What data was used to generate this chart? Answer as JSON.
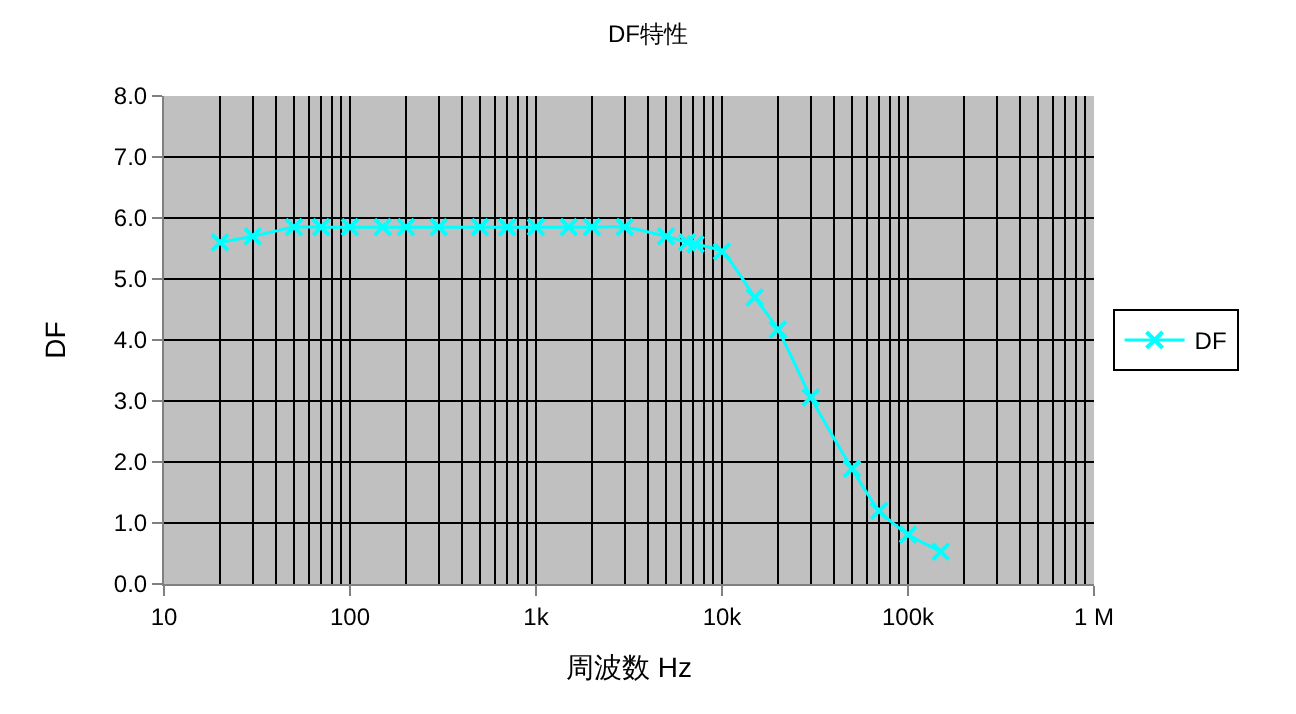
{
  "chart_data": {
    "type": "line",
    "title": "DF特性",
    "xlabel": "周波数 Hz",
    "ylabel": "DF",
    "log": "x",
    "grid": true,
    "legend": "right",
    "marker": "cross",
    "line_style": "solid",
    "x": [
      20,
      30,
      50,
      70,
      100,
      150,
      200,
      300,
      500,
      700,
      1000,
      1500,
      2000,
      3000,
      5000,
      6500,
      7200,
      10000,
      15000,
      20000,
      30000,
      50000,
      70000,
      100000,
      150000
    ],
    "xlim": [
      10,
      1000000
    ],
    "xticks": [
      10,
      100,
      {
        "value": 1000,
        "label": "1k"
      },
      {
        "value": 10000,
        "label": "10k"
      },
      {
        "value": 100000,
        "label": "100k"
      },
      {
        "value": 1000000,
        "label": "1 M"
      }
    ],
    "ylim": [
      0,
      8
    ],
    "yticks": [
      {
        "value": 0,
        "label": "0.0"
      },
      {
        "value": 1,
        "label": "1.0"
      },
      {
        "value": 2,
        "label": "2.0"
      },
      {
        "value": 3,
        "label": "3.0"
      },
      {
        "value": 4,
        "label": "4.0"
      },
      {
        "value": 5,
        "label": "5.0"
      },
      {
        "value": 6,
        "label": "6.0"
      },
      {
        "value": 7,
        "label": "7.0"
      },
      {
        "value": 8,
        "label": "8.0"
      }
    ],
    "series": [
      {
        "name": "DF",
        "color": "#00ffff",
        "values": [
          5.6,
          5.7,
          5.85,
          5.85,
          5.85,
          5.85,
          5.85,
          5.85,
          5.85,
          5.85,
          5.85,
          5.85,
          5.85,
          5.85,
          5.7,
          5.6,
          5.57,
          5.45,
          4.7,
          4.17,
          3.06,
          1.89,
          1.2,
          0.81,
          0.53
        ]
      }
    ]
  }
}
